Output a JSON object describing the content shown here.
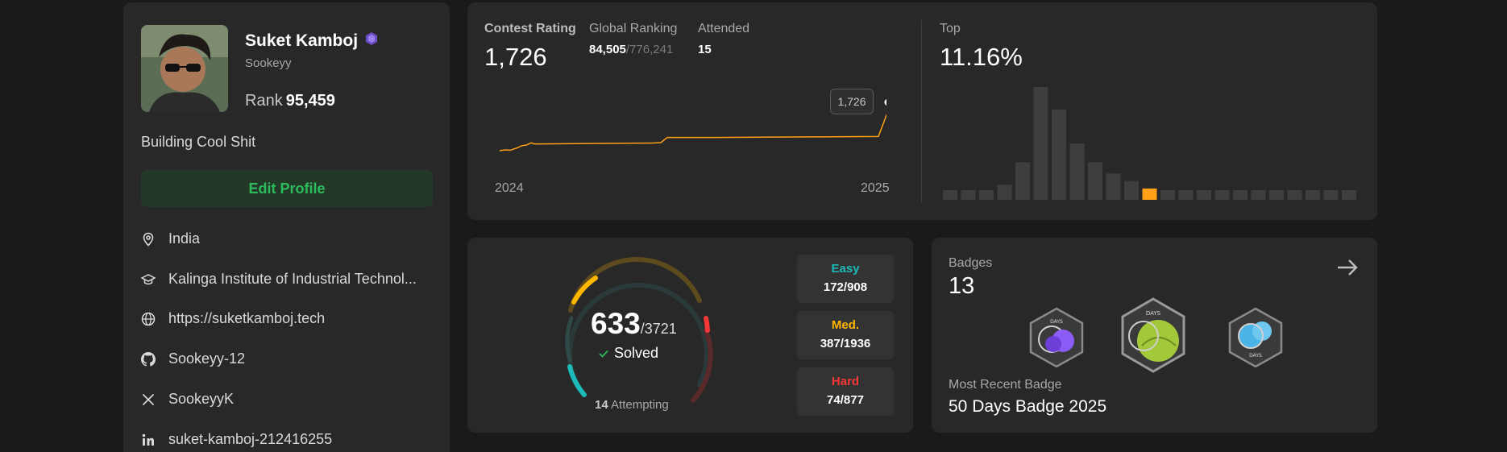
{
  "profile": {
    "name": "Suket Kamboj",
    "username": "Sookeyy",
    "rank_label": "Rank",
    "rank_value": "95,459",
    "bio": "Building Cool Shit",
    "edit_label": "Edit Profile",
    "location": "India",
    "school": "Kalinga Institute of Industrial Technol...",
    "website": "https://suketkamboj.tech",
    "github": "Sookeyy-12",
    "twitter": "SookeyyK",
    "linkedin": "suket-kamboj-212416255"
  },
  "contest": {
    "rating_label": "Contest Rating",
    "rating_value": "1,726",
    "global_label": "Global Ranking",
    "global_value": "84,505",
    "global_total": "/776,241",
    "attended_label": "Attended",
    "attended_value": "15",
    "top_label": "Top",
    "top_value": "11.16%",
    "year_start": "2024",
    "year_end": "2025",
    "tooltip": "1,726",
    "line_color": "#ffa116",
    "rating_history": [
      1498,
      1502,
      1500,
      1510,
      1522,
      1524,
      1535,
      1530,
      1530,
      1531,
      1532,
      1533,
      1534,
      1536,
      1560,
      1560,
      1562,
      1563,
      1564,
      1565,
      1726
    ],
    "distribution": [
      2,
      2,
      2,
      4,
      10,
      30,
      24,
      15,
      10,
      7,
      5,
      3,
      2,
      2,
      2,
      2,
      2,
      2,
      2,
      2,
      2,
      2,
      2
    ],
    "highlight_index": 11
  },
  "solved": {
    "count": "633",
    "total": "/3721",
    "solved_label": "Solved",
    "attempting_count": "14",
    "attempting_label": "Attempting",
    "easy_label": "Easy",
    "easy_value": "172/908",
    "easy_color": "#1cbaba",
    "medium_label": "Med.",
    "medium_value": "387/1936",
    "medium_color": "#ffb700",
    "hard_label": "Hard",
    "hard_value": "74/877",
    "hard_color": "#f63737"
  },
  "badges": {
    "label": "Badges",
    "count": "13",
    "recent_label": "Most Recent Badge",
    "recent_name": "50 Days Badge 2025",
    "items": [
      {
        "name": "100 Days Badge",
        "text": "DAYS",
        "color": "#8b5cf6"
      },
      {
        "name": "50 Days Badge 2025",
        "text": "DAYS",
        "color": "#a3c93a"
      },
      {
        "name": "Days Badge",
        "text": "DAYS",
        "color": "#4ab4e6"
      }
    ]
  }
}
